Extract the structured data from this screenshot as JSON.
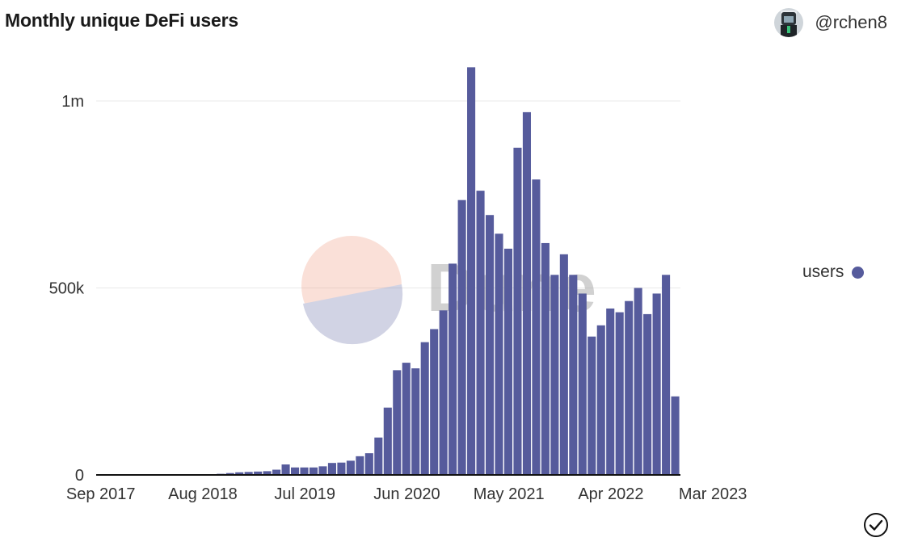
{
  "header": {
    "title": "Monthly unique DeFi users",
    "username": "@rchen8"
  },
  "legend": {
    "label": "users",
    "color": "#565b9c"
  },
  "watermark": {
    "text": "Dune"
  },
  "colors": {
    "bar": "#565b9c",
    "grid": "#e9e9e9",
    "axis": "#111111"
  },
  "chart_data": {
    "type": "bar",
    "title": "Monthly unique DeFi users",
    "xlabel": "",
    "ylabel": "",
    "x_ticks": [
      "Sep 2017",
      "Aug 2018",
      "Jul 2019",
      "Jun 2020",
      "May 2021",
      "Apr 2022",
      "Mar 2023"
    ],
    "y_ticks": [
      "0",
      "500k",
      "1m"
    ],
    "ylim": [
      0,
      1100000
    ],
    "grid": true,
    "legend_position": "right",
    "start_month": "Sep 2017",
    "series": [
      {
        "name": "users",
        "values": [
          200,
          250,
          300,
          350,
          400,
          450,
          500,
          550,
          600,
          700,
          800,
          900,
          1500,
          3000,
          5000,
          7000,
          8000,
          9000,
          10000,
          14000,
          28000,
          20000,
          20000,
          20000,
          23000,
          32000,
          33000,
          38000,
          50000,
          58000,
          100000,
          180000,
          280000,
          300000,
          285000,
          355000,
          390000,
          440000,
          565000,
          735000,
          1090000,
          760000,
          695000,
          645000,
          605000,
          875000,
          970000,
          790000,
          620000,
          535000,
          590000,
          535000,
          485000,
          370000,
          400000,
          445000,
          435000,
          465000,
          500000,
          430000,
          485000,
          535000,
          210000
        ]
      }
    ]
  }
}
